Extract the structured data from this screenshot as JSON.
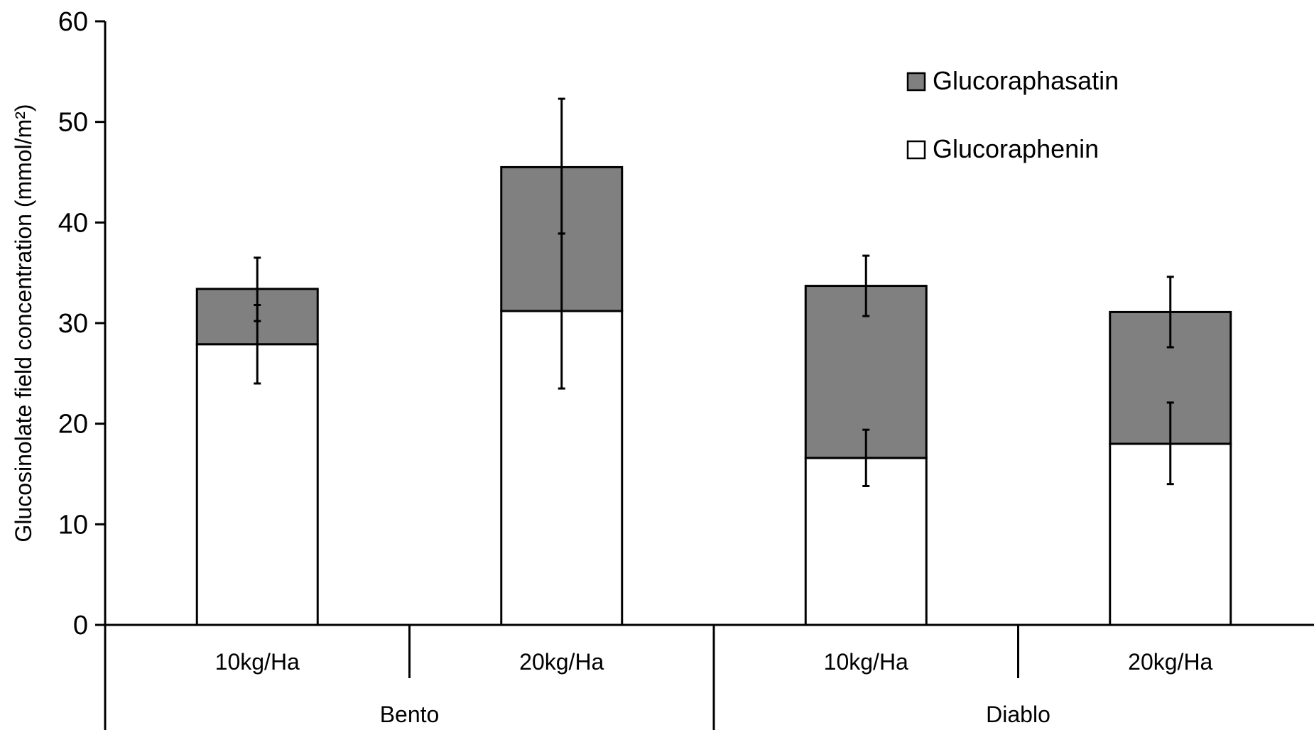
{
  "chart_data": {
    "type": "bar",
    "stacked": true,
    "ylabel": "Glucosinolate field concentration (mmol/m²)",
    "ylim": [
      0,
      60
    ],
    "yticks": [
      0,
      10,
      20,
      30,
      40,
      50,
      60
    ],
    "groups": [
      {
        "label": "Bento",
        "categories": [
          "10kg/Ha",
          "20kg/Ha"
        ]
      },
      {
        "label": "Diablo",
        "categories": [
          "10kg/Ha",
          "20kg/Ha"
        ]
      }
    ],
    "categories": [
      "10kg/Ha",
      "20kg/Ha",
      "10kg/Ha",
      "20kg/Ha"
    ],
    "series": [
      {
        "name": "Glucoraphenin",
        "color": "#ffffff",
        "values": [
          27.9,
          31.2,
          16.6,
          18.0
        ],
        "error_low": [
          24.0,
          23.5,
          13.8,
          14.0
        ],
        "error_high": [
          31.8,
          38.9,
          19.4,
          22.1
        ]
      },
      {
        "name": "Glucoraphasatin",
        "color": "#808080",
        "values": [
          5.5,
          14.3,
          17.1,
          13.1
        ],
        "error_low": [
          30.2,
          38.9,
          30.7,
          27.6
        ],
        "error_high": [
          36.5,
          52.3,
          36.7,
          34.6
        ]
      }
    ],
    "legend": {
      "position": "top-right",
      "order": [
        "Glucoraphasatin",
        "Glucoraphenin"
      ]
    },
    "grid": false
  }
}
